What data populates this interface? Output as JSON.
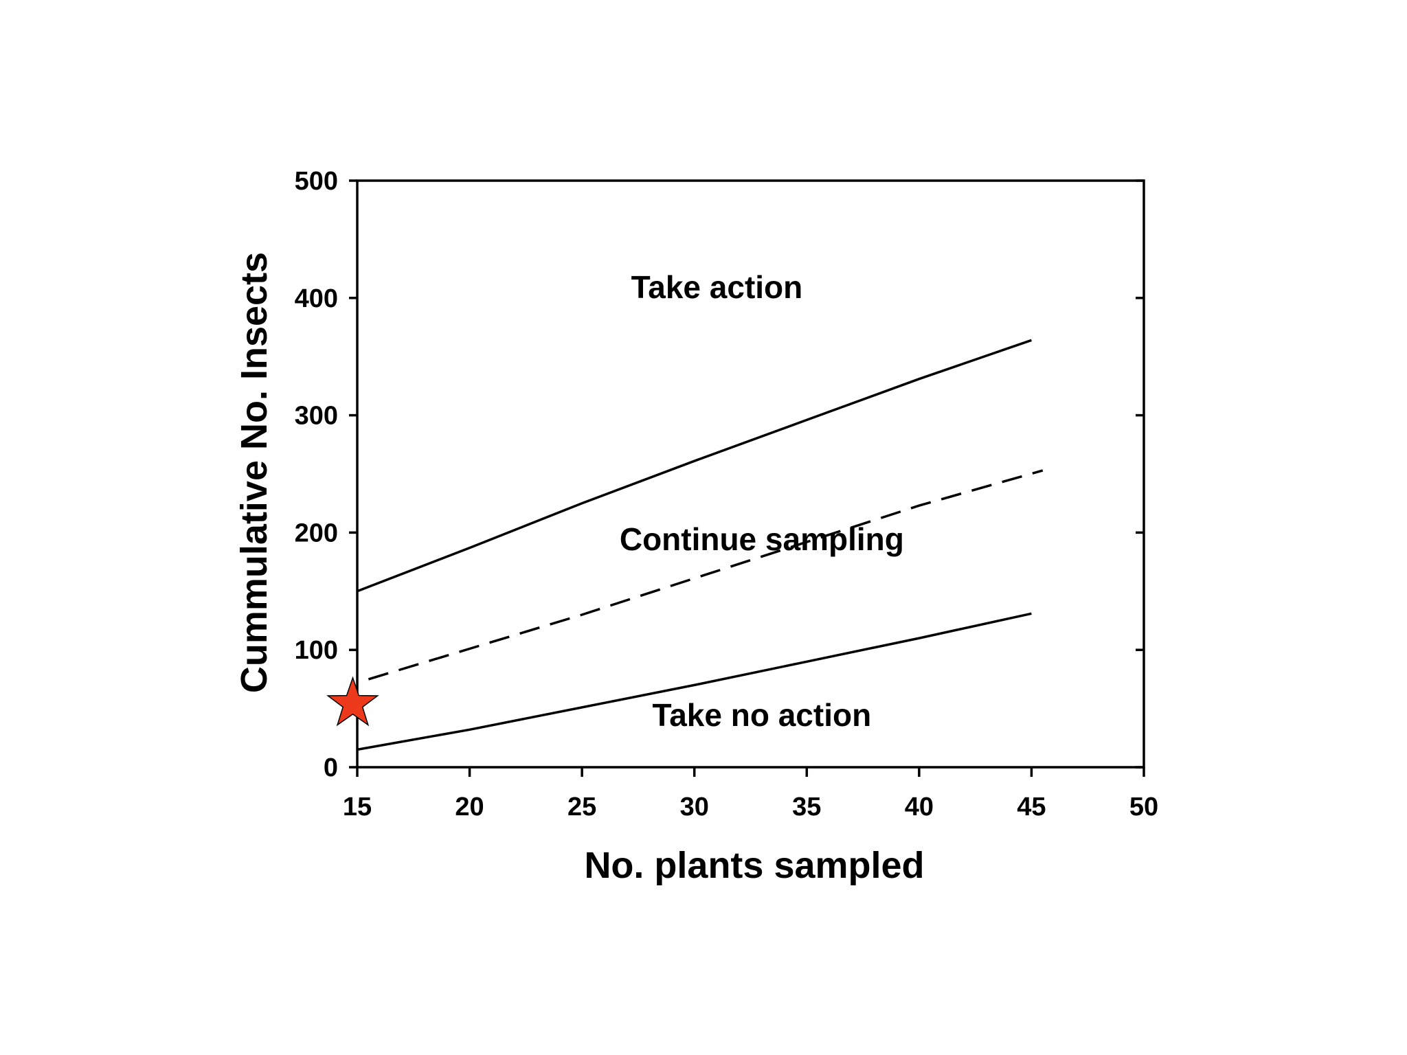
{
  "chart_data": {
    "type": "line",
    "xlabel": "No. plants sampled",
    "ylabel": "Cummulative No. Insects",
    "xlim": [
      15,
      50
    ],
    "ylim": [
      0,
      500
    ],
    "xticks": [
      "15",
      "20",
      "25",
      "30",
      "35",
      "40",
      "45",
      "50"
    ],
    "yticks": [
      "0",
      "100",
      "200",
      "300",
      "400",
      "500"
    ],
    "grid": false,
    "series": [
      {
        "style": "solid",
        "color": "#000000",
        "x": [
          15,
          20,
          25,
          30,
          35,
          40,
          45
        ],
        "y": [
          150,
          187,
          225,
          261,
          296,
          331,
          364
        ]
      },
      {
        "style": "dashed",
        "color": "#000000",
        "x": [
          15.5,
          20,
          25,
          30,
          35,
          40,
          45.5
        ],
        "y": [
          75,
          101,
          130,
          161,
          192,
          223,
          253
        ]
      },
      {
        "style": "solid",
        "color": "#000000",
        "x": [
          15,
          20,
          25,
          30,
          35,
          40,
          45
        ],
        "y": [
          15,
          32,
          51,
          70,
          90,
          110,
          131
        ]
      }
    ],
    "annotations": [
      {
        "text": "Take action",
        "x": 31,
        "y": 400
      },
      {
        "text": "Continue sampling",
        "x": 33,
        "y": 185
      },
      {
        "text": "Take no action",
        "x": 33,
        "y": 35
      }
    ],
    "marker": {
      "shape": "star",
      "color": "#ee3a1c",
      "x": 14.8,
      "y": 54
    }
  }
}
